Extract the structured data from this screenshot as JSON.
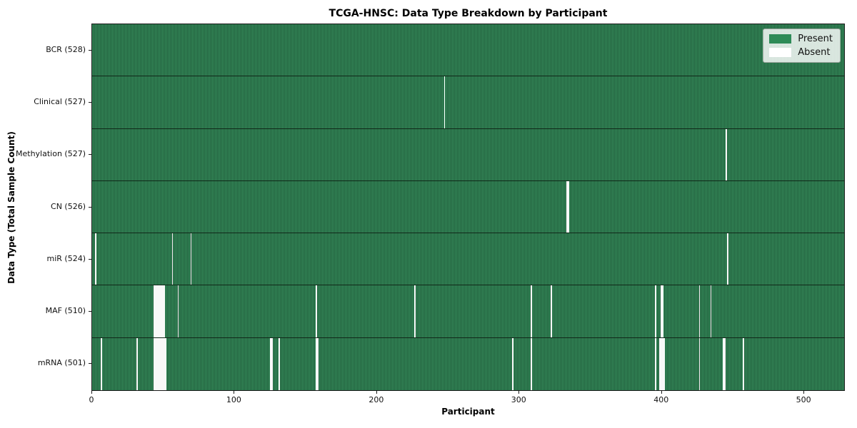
{
  "title": "TCGA-HNSC: Data Type Breakdown by Participant",
  "chart_data": {
    "type": "heatmap",
    "title": "TCGA-HNSC: Data Type Breakdown by Participant",
    "xlabel": "Participant",
    "ylabel": "Data Type (Total Sample Count)",
    "legend_position": "upper right",
    "grid": false,
    "total_participants": 528,
    "x_ticks": [
      0,
      100,
      200,
      300,
      400,
      500
    ],
    "xlim": [
      0,
      528
    ],
    "cell_states": [
      "Present",
      "Absent"
    ],
    "rows": [
      {
        "label": "BCR (528)",
        "data_type": "BCR",
        "present_count": 528,
        "absent_participants": []
      },
      {
        "label": "Clinical (527)",
        "data_type": "Clinical",
        "present_count": 527,
        "absent_participants": [
          247
        ]
      },
      {
        "label": "Methylation (527)",
        "data_type": "Methylation",
        "present_count": 527,
        "absent_participants": [
          445
        ]
      },
      {
        "label": "CN (526)",
        "data_type": "CN",
        "present_count": 526,
        "absent_participants": [
          333,
          334
        ]
      },
      {
        "label": "miR (524)",
        "data_type": "miR",
        "present_count": 524,
        "absent_participants": [
          2,
          56,
          69,
          446
        ]
      },
      {
        "label": "MAF (510)",
        "data_type": "MAF",
        "present_count": 510,
        "absent_participants": [
          43,
          44,
          45,
          46,
          47,
          48,
          49,
          50,
          60,
          157,
          226,
          308,
          322,
          395,
          399,
          400,
          426,
          434
        ]
      },
      {
        "label": "mRNA (501)",
        "data_type": "mRNA",
        "present_count": 501,
        "absent_participants": [
          6,
          31,
          43,
          44,
          45,
          46,
          47,
          48,
          49,
          50,
          51,
          125,
          126,
          131,
          157,
          158,
          295,
          308,
          395,
          398,
          399,
          400,
          401,
          426,
          443,
          444,
          457
        ]
      }
    ],
    "legend": {
      "present_label": "Present",
      "absent_label": "Absent"
    },
    "colors": {
      "present": "#2e8b57",
      "present_bar_light": "#358c5b",
      "present_bar_dark": "#235f3d",
      "absent": "#f8f8f8",
      "row_separator": "#141a15",
      "axis": "#1a1a1a"
    }
  }
}
